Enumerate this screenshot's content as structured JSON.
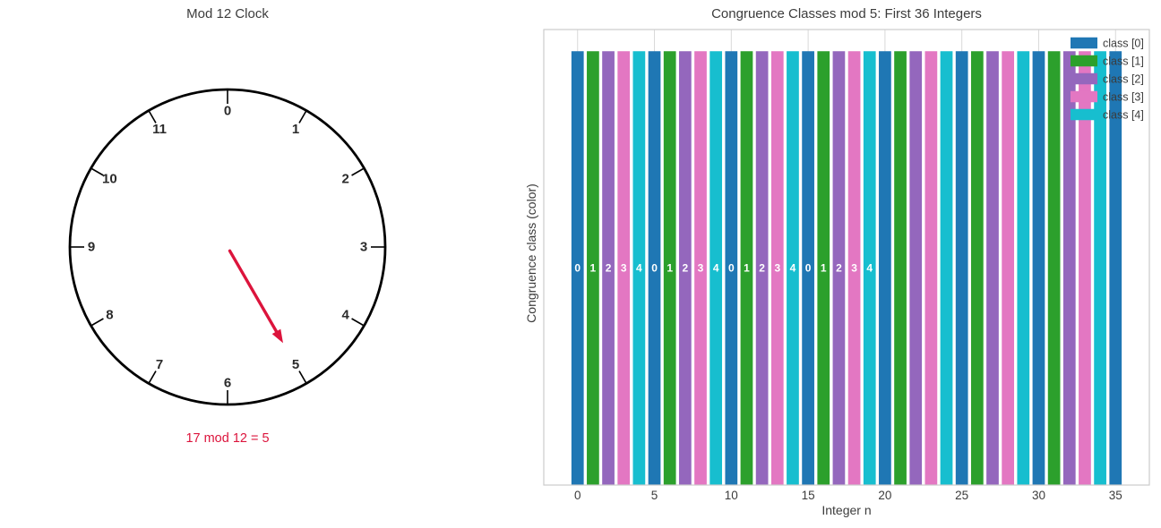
{
  "figure": {
    "background": "#ffffff",
    "text_color": "#3c3c3c"
  },
  "clock": {
    "title": "Mod 12 Clock",
    "modulus": 12,
    "numbers": [
      "0",
      "1",
      "2",
      "3",
      "4",
      "5",
      "6",
      "7",
      "8",
      "9",
      "10",
      "11"
    ],
    "pointer_value": 5,
    "caption": "17 mod 12 = 5",
    "pointer_color": "#dc143c",
    "ring_color": "#000000",
    "number_color": "#2b2b2b"
  },
  "chart_data": {
    "type": "bar",
    "title": "Congruence Classes mod 5: First 36 Integers",
    "xlabel": "Integer n",
    "ylabel": "Congruence class (color)",
    "x": [
      0,
      1,
      2,
      3,
      4,
      5,
      6,
      7,
      8,
      9,
      10,
      11,
      12,
      13,
      14,
      15,
      16,
      17,
      18,
      19,
      20,
      21,
      22,
      23,
      24,
      25,
      26,
      27,
      28,
      29,
      30,
      31,
      32,
      33,
      34,
      35
    ],
    "values": [
      1,
      1,
      1,
      1,
      1,
      1,
      1,
      1,
      1,
      1,
      1,
      1,
      1,
      1,
      1,
      1,
      1,
      1,
      1,
      1,
      1,
      1,
      1,
      1,
      1,
      1,
      1,
      1,
      1,
      1,
      1,
      1,
      1,
      1,
      1,
      1
    ],
    "bar_classes": [
      0,
      1,
      2,
      3,
      4,
      0,
      1,
      2,
      3,
      4,
      0,
      1,
      2,
      3,
      4,
      0,
      1,
      2,
      3,
      4,
      0,
      1,
      2,
      3,
      4,
      0,
      1,
      2,
      3,
      4,
      0,
      1,
      2,
      3,
      4,
      0
    ],
    "class_colors": [
      "#1f77b4",
      "#2ca02c",
      "#9467bd",
      "#e377c2",
      "#17becf"
    ],
    "in_bar_labels": [
      "0",
      "1",
      "2",
      "3",
      "4",
      "0",
      "1",
      "2",
      "3",
      "4",
      "0",
      "1",
      "2",
      "3",
      "4",
      "0",
      "1",
      "2",
      "3",
      "4"
    ],
    "in_bar_label_color": "#ffffff",
    "xticks": [
      0,
      5,
      10,
      15,
      20,
      25,
      30,
      35
    ],
    "xlim": [
      -2.2,
      37.2
    ],
    "ylim": [
      0,
      1.05
    ],
    "bar_width_fraction": 0.8,
    "grid": {
      "axis": "x",
      "color": "#d9d9d9"
    },
    "spine_color": "#cccccc",
    "tick_label_color": "#3c3c3c",
    "legend": {
      "position": "upper right",
      "entries": [
        {
          "label": "class [0]",
          "color": "#1f77b4"
        },
        {
          "label": "class [1]",
          "color": "#2ca02c"
        },
        {
          "label": "class [2]",
          "color": "#9467bd"
        },
        {
          "label": "class [3]",
          "color": "#e377c2"
        },
        {
          "label": "class [4]",
          "color": "#17becf"
        }
      ]
    }
  }
}
